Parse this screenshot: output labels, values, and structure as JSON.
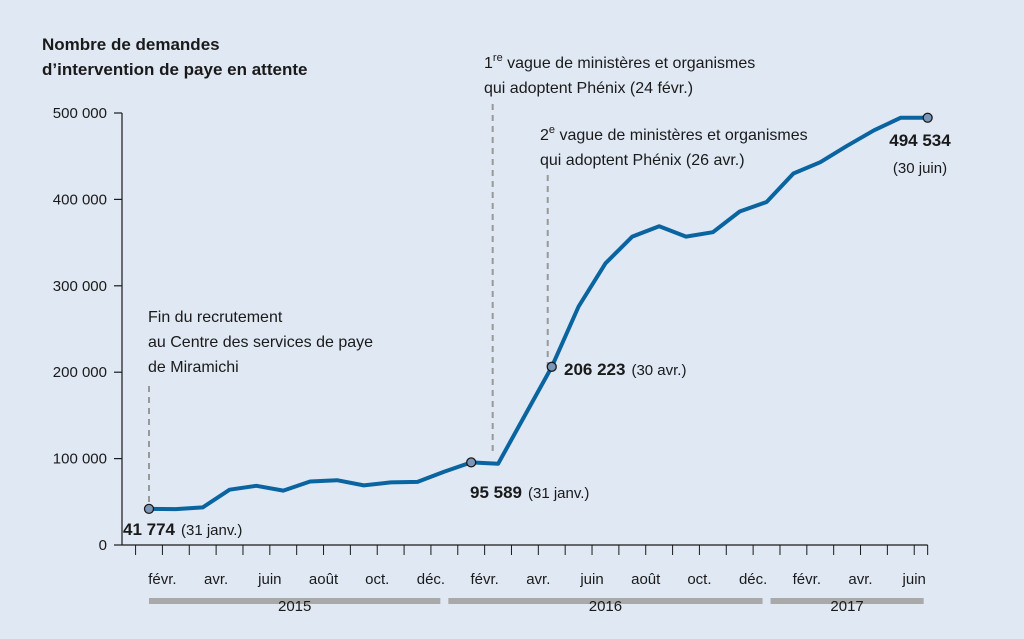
{
  "colors": {
    "background": "#dfe8f3",
    "line": "#0a64a0",
    "marker_fill": "#7a96b8",
    "axis": "#1a1a1a",
    "guide": "#999999",
    "year_band": "#a9a9a9"
  },
  "chart_data": {
    "type": "line",
    "ytitle_line1": "Nombre de demandes",
    "ytitle_line2": "d’intervention de paye en attente",
    "ylim": [
      0,
      500000
    ],
    "ytick_values": [
      0,
      100000,
      200000,
      300000,
      400000,
      500000
    ],
    "ytick_labels": [
      "0",
      "100 000",
      "200 000",
      "300 000",
      "400 000",
      "500 000"
    ],
    "x_month_index_range": [
      0,
      30
    ],
    "month_ticks": [
      {
        "index": 1,
        "label": "févr."
      },
      {
        "index": 3,
        "label": "avr."
      },
      {
        "index": 5,
        "label": "juin"
      },
      {
        "index": 7,
        "label": "août"
      },
      {
        "index": 9,
        "label": "oct."
      },
      {
        "index": 11,
        "label": "déc."
      },
      {
        "index": 13,
        "label": "févr."
      },
      {
        "index": 15,
        "label": "avr."
      },
      {
        "index": 17,
        "label": "juin"
      },
      {
        "index": 19,
        "label": "août"
      },
      {
        "index": 21,
        "label": "oct."
      },
      {
        "index": 23,
        "label": "déc."
      },
      {
        "index": 25,
        "label": "févr."
      },
      {
        "index": 27,
        "label": "avr."
      },
      {
        "index": 29,
        "label": "juin"
      }
    ],
    "years": [
      {
        "label": "2015",
        "from_index": 0,
        "to_index": 11
      },
      {
        "label": "2016",
        "from_index": 11,
        "to_index": 23
      },
      {
        "label": "2017",
        "from_index": 23,
        "to_index": 29
      }
    ],
    "series": [
      {
        "name": "Demandes d’intervention de paye en attente",
        "points": [
          [
            0,
            41774
          ],
          [
            1,
            41500
          ],
          [
            2,
            43500
          ],
          [
            3,
            64000
          ],
          [
            4,
            68500
          ],
          [
            5,
            63000
          ],
          [
            6,
            73500
          ],
          [
            7,
            75000
          ],
          [
            8,
            69000
          ],
          [
            9,
            72500
          ],
          [
            10,
            73000
          ],
          [
            11,
            85000
          ],
          [
            12,
            95589
          ],
          [
            13,
            94000
          ],
          [
            14,
            150000
          ],
          [
            15,
            206223
          ],
          [
            16,
            276000
          ],
          [
            17,
            326000
          ],
          [
            18,
            357000
          ],
          [
            19,
            369000
          ],
          [
            20,
            357000
          ],
          [
            21,
            362000
          ],
          [
            22,
            386000
          ],
          [
            23,
            397000
          ],
          [
            24,
            430000
          ],
          [
            25,
            443000
          ],
          [
            26,
            462000
          ],
          [
            27,
            480000
          ],
          [
            28,
            494534
          ],
          [
            29,
            494534
          ]
        ]
      }
    ],
    "highlight_points": [
      {
        "x": 0,
        "y": 41774,
        "value_label": "41 774",
        "date_label": "(31 janv.)"
      },
      {
        "x": 12,
        "y": 95589,
        "value_label": "95 589",
        "date_label": "(31 janv.)"
      },
      {
        "x": 15,
        "y": 206223,
        "value_label": "206 223",
        "date_label": "(30 avr.)"
      },
      {
        "x": 29,
        "y": 494534,
        "value_label": "494 534",
        "date_label": "(30 juin)"
      }
    ],
    "annotations": {
      "recruitment_end": {
        "x": 0,
        "lines": [
          "Fin du recrutement",
          "au Centre des services de paye",
          "de Miramichi"
        ]
      },
      "wave1": {
        "x": 12.8,
        "line1_prefix": "1",
        "line1_sup": "re",
        "line1_rest": " vague de ministères et organismes",
        "line2": "qui adoptent Phénix (24 févr.)"
      },
      "wave2": {
        "x": 14.85,
        "line1_prefix": "2",
        "line1_sup": "e",
        "line1_rest": " vague de ministères et organismes",
        "line2": "qui adoptent Phénix (26 avr.)"
      }
    }
  }
}
